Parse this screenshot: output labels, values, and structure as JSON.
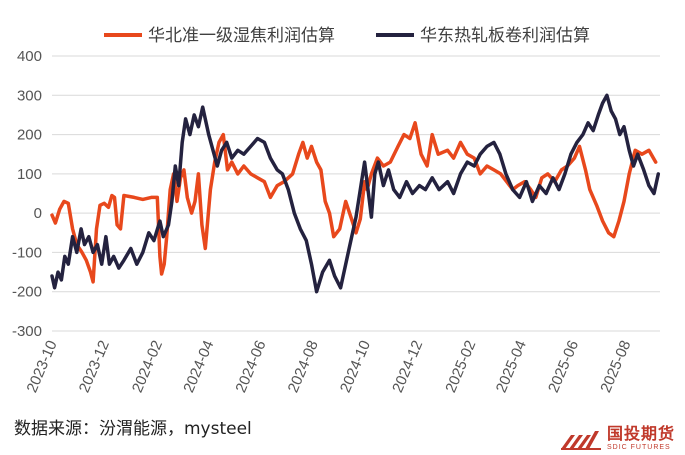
{
  "chart_data": {
    "type": "line",
    "legend_placement": "top",
    "ylim": [
      -300,
      400
    ],
    "yticks": [
      400,
      300,
      200,
      100,
      0,
      -100,
      -200,
      -300
    ],
    "xticks": [
      "2023-10",
      "2023-12",
      "2024-02",
      "2024-04",
      "2024-06",
      "2024-08",
      "2024-10",
      "2024-12",
      "2025-02",
      "2025-04",
      "2025-06",
      "2025-08"
    ],
    "x_start": "2023-10-01",
    "x_end": "2025-09-10",
    "series": [
      {
        "name": "华北准一级湿焦利润估算",
        "color": "#e8481c",
        "points": [
          [
            "2023-10-01",
            -5
          ],
          [
            "2023-10-05",
            -25
          ],
          [
            "2023-10-10",
            10
          ],
          [
            "2023-10-15",
            30
          ],
          [
            "2023-10-20",
            25
          ],
          [
            "2023-10-25",
            -40
          ],
          [
            "2023-10-30",
            -80
          ],
          [
            "2023-11-05",
            -100
          ],
          [
            "2023-11-10",
            -120
          ],
          [
            "2023-11-15",
            -150
          ],
          [
            "2023-11-18",
            -175
          ],
          [
            "2023-11-22",
            -40
          ],
          [
            "2023-11-26",
            20
          ],
          [
            "2023-12-01",
            25
          ],
          [
            "2023-12-06",
            15
          ],
          [
            "2023-12-10",
            45
          ],
          [
            "2023-12-13",
            40
          ],
          [
            "2023-12-16",
            -30
          ],
          [
            "2023-12-20",
            -40
          ],
          [
            "2023-12-24",
            45
          ],
          [
            "2024-01-05",
            40
          ],
          [
            "2024-01-15",
            35
          ],
          [
            "2024-01-25",
            40
          ],
          [
            "2024-02-01",
            40
          ],
          [
            "2024-02-04",
            -110
          ],
          [
            "2024-02-06",
            -155
          ],
          [
            "2024-02-09",
            -130
          ],
          [
            "2024-02-12",
            -60
          ],
          [
            "2024-02-16",
            60
          ],
          [
            "2024-02-20",
            100
          ],
          [
            "2024-02-24",
            30
          ],
          [
            "2024-02-28",
            90
          ],
          [
            "2024-03-03",
            110
          ],
          [
            "2024-03-07",
            40
          ],
          [
            "2024-03-12",
            0
          ],
          [
            "2024-03-16",
            30
          ],
          [
            "2024-03-20",
            100
          ],
          [
            "2024-03-24",
            -30
          ],
          [
            "2024-03-28",
            -90
          ],
          [
            "2024-04-03",
            60
          ],
          [
            "2024-04-08",
            130
          ],
          [
            "2024-04-13",
            180
          ],
          [
            "2024-04-18",
            200
          ],
          [
            "2024-04-23",
            110
          ],
          [
            "2024-04-28",
            130
          ],
          [
            "2024-05-05",
            100
          ],
          [
            "2024-05-12",
            120
          ],
          [
            "2024-05-20",
            100
          ],
          [
            "2024-05-28",
            90
          ],
          [
            "2024-06-05",
            80
          ],
          [
            "2024-06-12",
            40
          ],
          [
            "2024-06-20",
            70
          ],
          [
            "2024-06-28",
            80
          ],
          [
            "2024-07-08",
            100
          ],
          [
            "2024-07-15",
            150
          ],
          [
            "2024-07-20",
            180
          ],
          [
            "2024-07-25",
            140
          ],
          [
            "2024-07-30",
            170
          ],
          [
            "2024-08-05",
            130
          ],
          [
            "2024-08-10",
            110
          ],
          [
            "2024-08-15",
            30
          ],
          [
            "2024-08-20",
            0
          ],
          [
            "2024-08-25",
            -60
          ],
          [
            "2024-09-01",
            -40
          ],
          [
            "2024-09-08",
            30
          ],
          [
            "2024-09-14",
            -10
          ],
          [
            "2024-09-20",
            -50
          ],
          [
            "2024-09-25",
            -15
          ],
          [
            "2024-09-30",
            80
          ],
          [
            "2024-10-03",
            60
          ],
          [
            "2024-10-08",
            100
          ],
          [
            "2024-10-15",
            140
          ],
          [
            "2024-10-22",
            120
          ],
          [
            "2024-10-30",
            130
          ],
          [
            "2024-11-08",
            170
          ],
          [
            "2024-11-15",
            200
          ],
          [
            "2024-11-22",
            190
          ],
          [
            "2024-11-28",
            230
          ],
          [
            "2024-12-05",
            150
          ],
          [
            "2024-12-12",
            120
          ],
          [
            "2024-12-18",
            200
          ],
          [
            "2024-12-25",
            150
          ],
          [
            "2025-01-05",
            160
          ],
          [
            "2025-01-12",
            140
          ],
          [
            "2025-01-20",
            180
          ],
          [
            "2025-01-28",
            150
          ],
          [
            "2025-02-05",
            140
          ],
          [
            "2025-02-12",
            100
          ],
          [
            "2025-02-20",
            120
          ],
          [
            "2025-02-28",
            110
          ],
          [
            "2025-03-08",
            100
          ],
          [
            "2025-03-15",
            80
          ],
          [
            "2025-03-22",
            60
          ],
          [
            "2025-03-28",
            70
          ],
          [
            "2025-04-05",
            80
          ],
          [
            "2025-04-12",
            60
          ],
          [
            "2025-04-18",
            40
          ],
          [
            "2025-04-25",
            90
          ],
          [
            "2025-05-02",
            100
          ],
          [
            "2025-05-10",
            80
          ],
          [
            "2025-05-18",
            110
          ],
          [
            "2025-05-25",
            120
          ],
          [
            "2025-06-02",
            140
          ],
          [
            "2025-06-08",
            170
          ],
          [
            "2025-06-15",
            110
          ],
          [
            "2025-06-20",
            60
          ],
          [
            "2025-06-28",
            20
          ],
          [
            "2025-07-05",
            -20
          ],
          [
            "2025-07-12",
            -50
          ],
          [
            "2025-07-18",
            -60
          ],
          [
            "2025-07-24",
            -20
          ],
          [
            "2025-07-30",
            30
          ],
          [
            "2025-08-05",
            100
          ],
          [
            "2025-08-12",
            160
          ],
          [
            "2025-08-20",
            150
          ],
          [
            "2025-08-28",
            160
          ],
          [
            "2025-09-05",
            130
          ]
        ]
      },
      {
        "name": "华东热轧板卷利润估算",
        "color": "#24223f",
        "points": [
          [
            "2023-10-01",
            -160
          ],
          [
            "2023-10-04",
            -190
          ],
          [
            "2023-10-08",
            -150
          ],
          [
            "2023-10-12",
            -170
          ],
          [
            "2023-10-16",
            -110
          ],
          [
            "2023-10-20",
            -130
          ],
          [
            "2023-10-25",
            -60
          ],
          [
            "2023-10-30",
            -100
          ],
          [
            "2023-11-04",
            -40
          ],
          [
            "2023-11-08",
            -80
          ],
          [
            "2023-11-13",
            -60
          ],
          [
            "2023-11-18",
            -100
          ],
          [
            "2023-11-23",
            -80
          ],
          [
            "2023-11-28",
            -130
          ],
          [
            "2023-12-03",
            -60
          ],
          [
            "2023-12-07",
            -130
          ],
          [
            "2023-12-12",
            -110
          ],
          [
            "2023-12-18",
            -140
          ],
          [
            "2023-12-24",
            -120
          ],
          [
            "2024-01-01",
            -90
          ],
          [
            "2024-01-08",
            -130
          ],
          [
            "2024-01-15",
            -100
          ],
          [
            "2024-01-22",
            -50
          ],
          [
            "2024-01-28",
            -70
          ],
          [
            "2024-02-04",
            -20
          ],
          [
            "2024-02-08",
            -60
          ],
          [
            "2024-02-14",
            -30
          ],
          [
            "2024-02-18",
            30
          ],
          [
            "2024-02-22",
            120
          ],
          [
            "2024-02-26",
            70
          ],
          [
            "2024-03-01",
            180
          ],
          [
            "2024-03-05",
            240
          ],
          [
            "2024-03-10",
            200
          ],
          [
            "2024-03-15",
            250
          ],
          [
            "2024-03-20",
            220
          ],
          [
            "2024-03-25",
            270
          ],
          [
            "2024-04-01",
            200
          ],
          [
            "2024-04-06",
            160
          ],
          [
            "2024-04-11",
            120
          ],
          [
            "2024-04-16",
            160
          ],
          [
            "2024-04-22",
            180
          ],
          [
            "2024-04-28",
            140
          ],
          [
            "2024-05-05",
            160
          ],
          [
            "2024-05-12",
            150
          ],
          [
            "2024-05-20",
            170
          ],
          [
            "2024-05-28",
            190
          ],
          [
            "2024-06-05",
            180
          ],
          [
            "2024-06-12",
            140
          ],
          [
            "2024-06-20",
            110
          ],
          [
            "2024-06-26",
            100
          ],
          [
            "2024-07-03",
            60
          ],
          [
            "2024-07-10",
            0
          ],
          [
            "2024-07-17",
            -40
          ],
          [
            "2024-07-24",
            -70
          ],
          [
            "2024-07-30",
            -130
          ],
          [
            "2024-08-05",
            -200
          ],
          [
            "2024-08-12",
            -150
          ],
          [
            "2024-08-20",
            -120
          ],
          [
            "2024-08-26",
            -160
          ],
          [
            "2024-09-02",
            -190
          ],
          [
            "2024-09-08",
            -130
          ],
          [
            "2024-09-15",
            -60
          ],
          [
            "2024-09-20",
            -10
          ],
          [
            "2024-09-25",
            60
          ],
          [
            "2024-09-30",
            130
          ],
          [
            "2024-10-04",
            60
          ],
          [
            "2024-10-08",
            -10
          ],
          [
            "2024-10-12",
            100
          ],
          [
            "2024-10-16",
            130
          ],
          [
            "2024-10-22",
            70
          ],
          [
            "2024-10-28",
            110
          ],
          [
            "2024-11-03",
            60
          ],
          [
            "2024-11-10",
            40
          ],
          [
            "2024-11-18",
            80
          ],
          [
            "2024-11-25",
            50
          ],
          [
            "2024-12-03",
            70
          ],
          [
            "2024-12-10",
            60
          ],
          [
            "2024-12-18",
            90
          ],
          [
            "2024-12-26",
            60
          ],
          [
            "2025-01-05",
            80
          ],
          [
            "2025-01-12",
            50
          ],
          [
            "2025-01-20",
            100
          ],
          [
            "2025-01-28",
            130
          ],
          [
            "2025-02-05",
            120
          ],
          [
            "2025-02-12",
            150
          ],
          [
            "2025-02-20",
            170
          ],
          [
            "2025-02-28",
            180
          ],
          [
            "2025-03-07",
            150
          ],
          [
            "2025-03-14",
            100
          ],
          [
            "2025-03-22",
            60
          ],
          [
            "2025-03-30",
            40
          ],
          [
            "2025-04-07",
            80
          ],
          [
            "2025-04-14",
            30
          ],
          [
            "2025-04-22",
            70
          ],
          [
            "2025-04-30",
            50
          ],
          [
            "2025-05-08",
            90
          ],
          [
            "2025-05-15",
            60
          ],
          [
            "2025-05-22",
            100
          ],
          [
            "2025-05-29",
            150
          ],
          [
            "2025-06-05",
            180
          ],
          [
            "2025-06-12",
            200
          ],
          [
            "2025-06-18",
            230
          ],
          [
            "2025-06-24",
            210
          ],
          [
            "2025-06-30",
            250
          ],
          [
            "2025-07-05",
            280
          ],
          [
            "2025-07-10",
            300
          ],
          [
            "2025-07-15",
            260
          ],
          [
            "2025-07-20",
            240
          ],
          [
            "2025-07-25",
            200
          ],
          [
            "2025-07-30",
            220
          ],
          [
            "2025-08-05",
            160
          ],
          [
            "2025-08-10",
            120
          ],
          [
            "2025-08-15",
            150
          ],
          [
            "2025-08-22",
            110
          ],
          [
            "2025-08-28",
            70
          ],
          [
            "2025-09-03",
            50
          ],
          [
            "2025-09-08",
            100
          ]
        ]
      }
    ]
  },
  "source_text": "数据来源：汾渭能源，mysteel",
  "logo": {
    "cn": "国投期货",
    "en": "SDIC FUTURES"
  }
}
